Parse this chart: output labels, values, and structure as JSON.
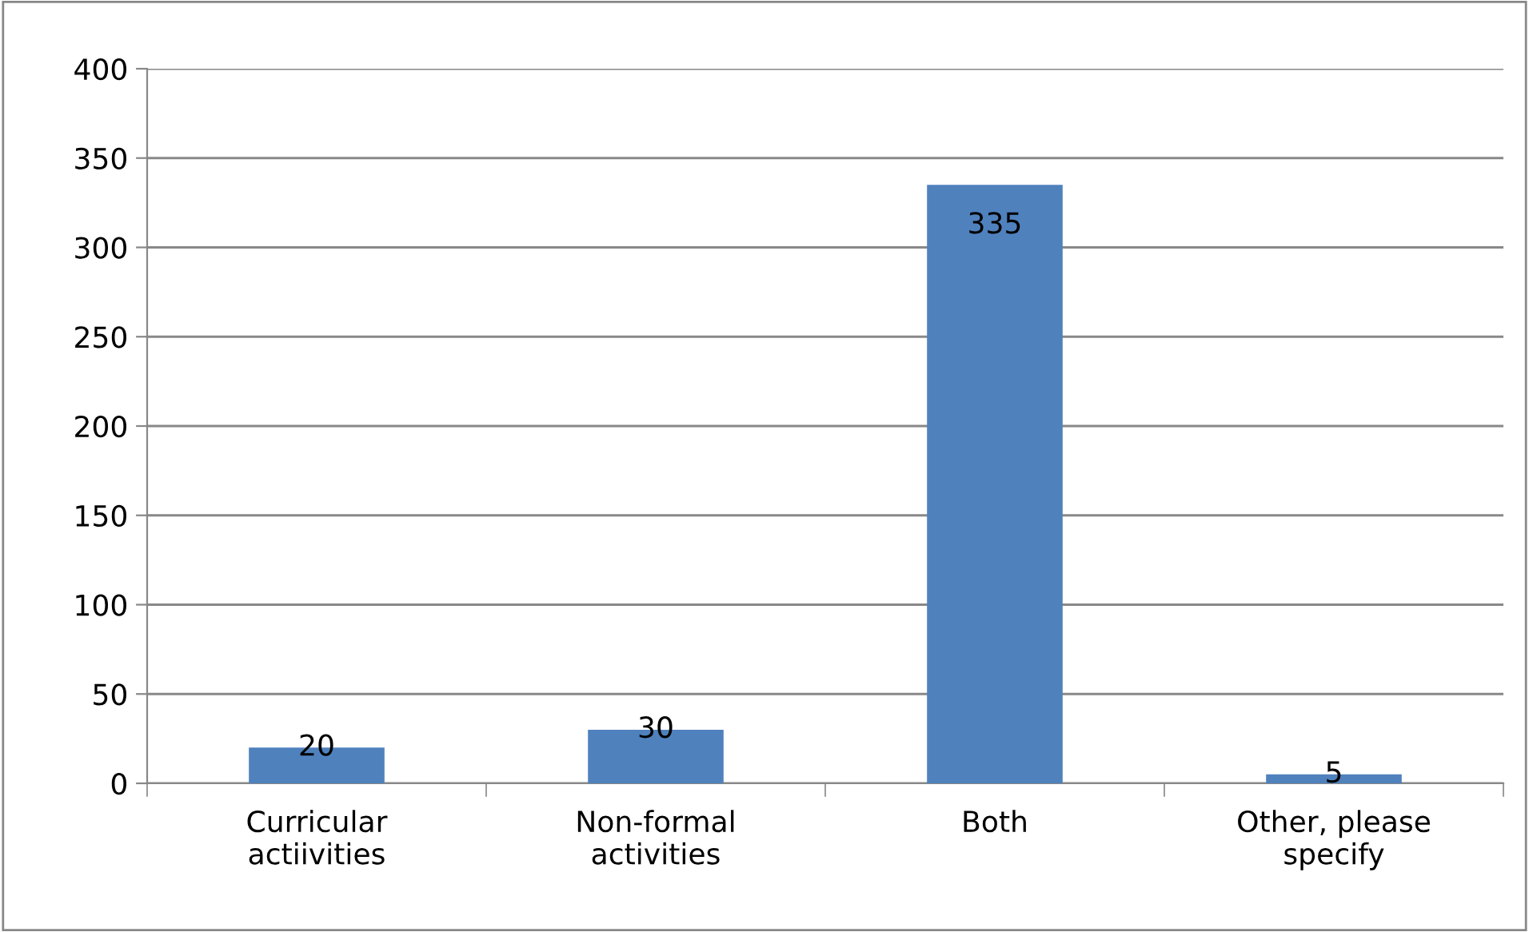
{
  "chart_data": {
    "type": "bar",
    "categories": [
      "Curricular\nactiivities",
      "Non-formal\nactivities",
      "Both",
      "Other, please\nspecify"
    ],
    "values": [
      20,
      30,
      335,
      5
    ],
    "color": "#4f81bd",
    "ylim": [
      0,
      400
    ],
    "yticks": [
      0,
      50,
      100,
      150,
      200,
      250,
      300,
      350,
      400
    ],
    "grid": "y",
    "data_labels": true,
    "legend": false
  }
}
